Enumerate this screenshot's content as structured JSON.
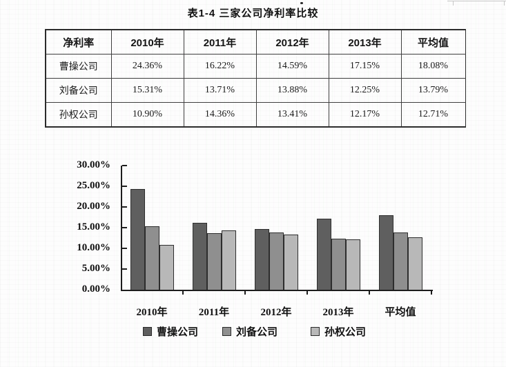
{
  "page": {
    "title": "表1-4 三家公司净利率比较"
  },
  "table": {
    "header": [
      "净利率",
      "2010年",
      "2011年",
      "2012年",
      "2013年",
      "平均值"
    ],
    "rows": [
      [
        "曹操公司",
        "24.36%",
        "16.22%",
        "14.59%",
        "17.15%",
        "18.08%"
      ],
      [
        "刘备公司",
        "15.31%",
        "13.71%",
        "13.88%",
        "12.25%",
        "13.79%"
      ],
      [
        "孙权公司",
        "10.90%",
        "14.36%",
        "13.41%",
        "12.17%",
        "12.71%"
      ]
    ]
  },
  "chart_data": {
    "type": "bar",
    "categories": [
      "2010年",
      "2011年",
      "2012年",
      "2013年",
      "平均值"
    ],
    "series": [
      {
        "name": "曹操公司",
        "color": "#5f5f5f",
        "values": [
          24.36,
          16.22,
          14.59,
          17.15,
          18.08
        ]
      },
      {
        "name": "刘备公司",
        "color": "#8f8f8f",
        "values": [
          15.31,
          13.71,
          13.88,
          12.25,
          13.79
        ]
      },
      {
        "name": "孙权公司",
        "color": "#b8b8b8",
        "values": [
          10.9,
          14.36,
          13.41,
          12.17,
          12.71
        ]
      }
    ],
    "ylim": [
      0,
      30
    ],
    "ytick_step": 5,
    "ytick_labels": [
      "0.00%",
      "5.00%",
      "10.00%",
      "15.00%",
      "20.00%",
      "25.00%",
      "30.00%"
    ],
    "xlabel": "",
    "ylabel": "",
    "legend_position": "bottom",
    "grid": false
  }
}
